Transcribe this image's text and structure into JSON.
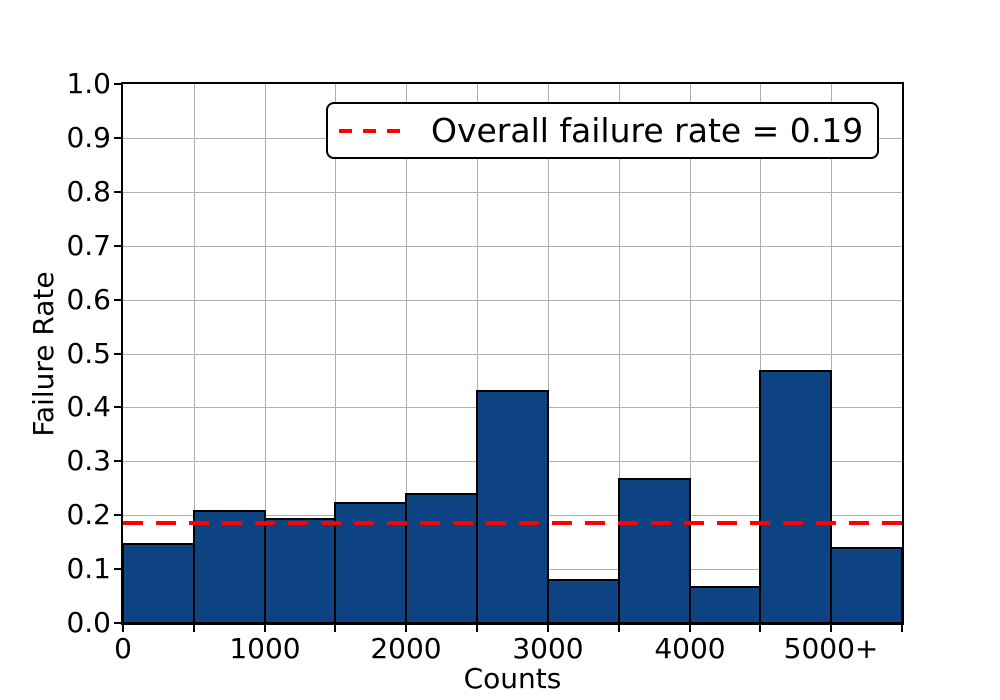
{
  "chart_data": {
    "type": "bar",
    "title": "",
    "xlabel": "Counts",
    "ylabel": "Failure Rate",
    "xlim": [
      0,
      5500
    ],
    "ylim": [
      0.0,
      1.0
    ],
    "grid": true,
    "legend_position": "upper right",
    "bar_color": "#0d4382",
    "bar_edge_color": "#000000",
    "grid_color": "#b0b0b0",
    "bin_edges": [
      0,
      500,
      1000,
      1500,
      2000,
      2500,
      3000,
      3500,
      4000,
      4500,
      5000,
      5500
    ],
    "categories": [
      "0-500",
      "500-1000",
      "1000-1500",
      "1500-2000",
      "2000-2500",
      "2500-3000",
      "3000-3500",
      "3500-4000",
      "4000-4500",
      "4500-5000",
      "5000+"
    ],
    "values": [
      0.147,
      0.207,
      0.193,
      0.222,
      0.239,
      0.43,
      0.08,
      0.267,
      0.066,
      0.467,
      0.14
    ],
    "x_tick_positions": [
      0,
      500,
      1000,
      1500,
      2000,
      2500,
      3000,
      3500,
      4000,
      4500,
      5000,
      5500
    ],
    "x_labeled_ticks": [
      {
        "pos": 0,
        "label": "0"
      },
      {
        "pos": 1000,
        "label": "1000"
      },
      {
        "pos": 2000,
        "label": "2000"
      },
      {
        "pos": 3000,
        "label": "3000"
      },
      {
        "pos": 4000,
        "label": "4000"
      },
      {
        "pos": 5000,
        "label": "5000+"
      }
    ],
    "y_ticks": [
      {
        "value": 0.0,
        "label": "0.0"
      },
      {
        "value": 0.1,
        "label": "0.1"
      },
      {
        "value": 0.2,
        "label": "0.2"
      },
      {
        "value": 0.3,
        "label": "0.3"
      },
      {
        "value": 0.4,
        "label": "0.4"
      },
      {
        "value": 0.5,
        "label": "0.5"
      },
      {
        "value": 0.6,
        "label": "0.6"
      },
      {
        "value": 0.7,
        "label": "0.7"
      },
      {
        "value": 0.8,
        "label": "0.8"
      },
      {
        "value": 0.9,
        "label": "0.9"
      },
      {
        "value": 1.0,
        "label": "1.0"
      }
    ],
    "reference_line": {
      "value": 0.186,
      "color": "#ff0000",
      "style": "dashed",
      "label": "Overall failure rate = 0.19"
    }
  }
}
